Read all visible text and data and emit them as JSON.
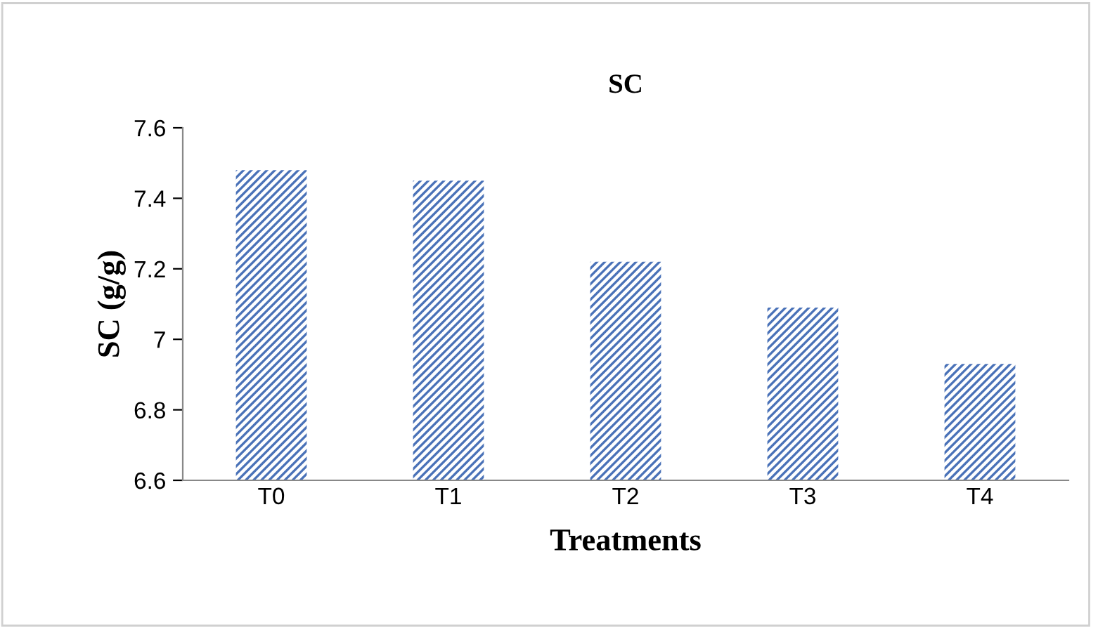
{
  "chart_data": {
    "type": "bar",
    "title": "SC",
    "xlabel": "Treatments",
    "ylabel": "SC (g/g)",
    "categories": [
      "T0",
      "T1",
      "T2",
      "T3",
      "T4"
    ],
    "values": [
      7.48,
      7.45,
      7.22,
      7.09,
      6.93
    ],
    "color": "#4a72b8",
    "ylim": [
      6.6,
      7.6
    ],
    "yticks": [
      {
        "value": 6.6,
        "label": "6.6"
      },
      {
        "value": 6.8,
        "label": "6.8"
      },
      7,
      {
        "value": 7.2,
        "label": "7.2"
      },
      {
        "value": 7.4,
        "label": "7.4"
      },
      {
        "value": 7.6,
        "label": "7.6"
      }
    ],
    "grid": false,
    "legend": false
  }
}
